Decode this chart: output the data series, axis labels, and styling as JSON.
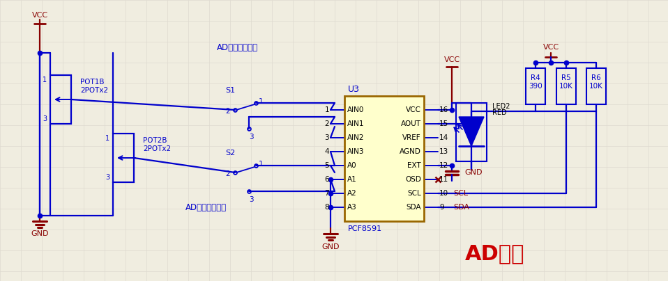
{
  "bg_color": "#f0ede0",
  "grid_color": "#dedad0",
  "blue": "#0000cc",
  "dark_red": "#880000",
  "red": "#cc0000",
  "black": "#000000",
  "yellow_fill": "#ffffcc",
  "yellow_border": "#996600",
  "title": "AD采样",
  "chip_label": "U3",
  "chip_name": "PCF8591",
  "chip_left_pins": [
    "AIN0",
    "AIN1",
    "AIN2",
    "AIN3",
    "A0",
    "A1",
    "A2",
    "A3"
  ],
  "chip_right_pins": [
    "VCC",
    "AOUT",
    "VREF",
    "AGND",
    "EXT",
    "OSD",
    "SCL",
    "SDA"
  ],
  "chip_left_nums": [
    "1",
    "2",
    "3",
    "4",
    "5",
    "6",
    "7",
    "8"
  ],
  "chip_right_nums": [
    "16",
    "15",
    "14",
    "13",
    "12",
    "11",
    "10",
    "9"
  ]
}
